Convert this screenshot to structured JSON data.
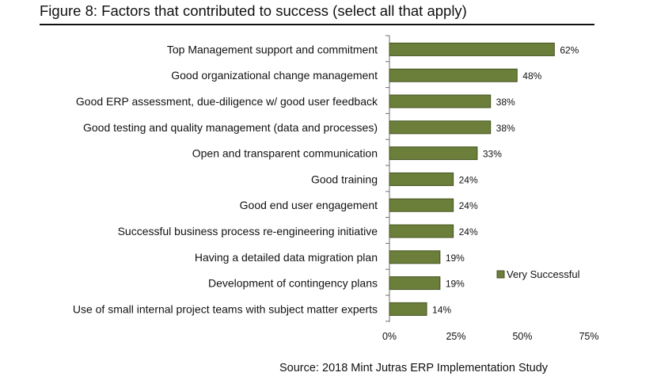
{
  "header": {
    "title": "Figure 8: Factors that contributed to success (select all that apply)"
  },
  "footer": {
    "source": "Source: 2018 Mint Jutras ERP Implementation Study"
  },
  "colors": {
    "bar_fill": "#6b7f3b",
    "bar_stroke": "#44521f",
    "axis": "#6e6e6e"
  },
  "chart_data": {
    "type": "bar",
    "orientation": "horizontal",
    "title": "Figure 8: Factors that contributed to success (select all that apply)",
    "xlabel": "",
    "ylabel": "",
    "categories": [
      "Top Management support and commitment",
      "Good organizational change management",
      "Good ERP assessment, due-diligence w/ good user feedback",
      "Good testing and quality management (data and processes)",
      "Open and transparent communication",
      "Good training",
      "Good end user engagement",
      "Successful business process re-engineering initiative",
      "Having a detailed data migration plan",
      "Development of contingency plans",
      "Use of small internal project teams with subject matter experts"
    ],
    "series": [
      {
        "name": "Very Successful",
        "values": [
          62,
          48,
          38,
          38,
          33,
          24,
          24,
          24,
          19,
          19,
          14
        ],
        "labels": [
          "62%",
          "48%",
          "38%",
          "38%",
          "33%",
          "24%",
          "24%",
          "24%",
          "19%",
          "19%",
          "14%"
        ]
      }
    ],
    "xlim": [
      0,
      75
    ],
    "xticks": [
      0,
      25,
      50,
      75
    ],
    "xtick_labels": [
      "0%",
      "25%",
      "50%",
      "75%"
    ],
    "grid": false,
    "legend_position": "right",
    "legend_label": "Very Successful"
  }
}
